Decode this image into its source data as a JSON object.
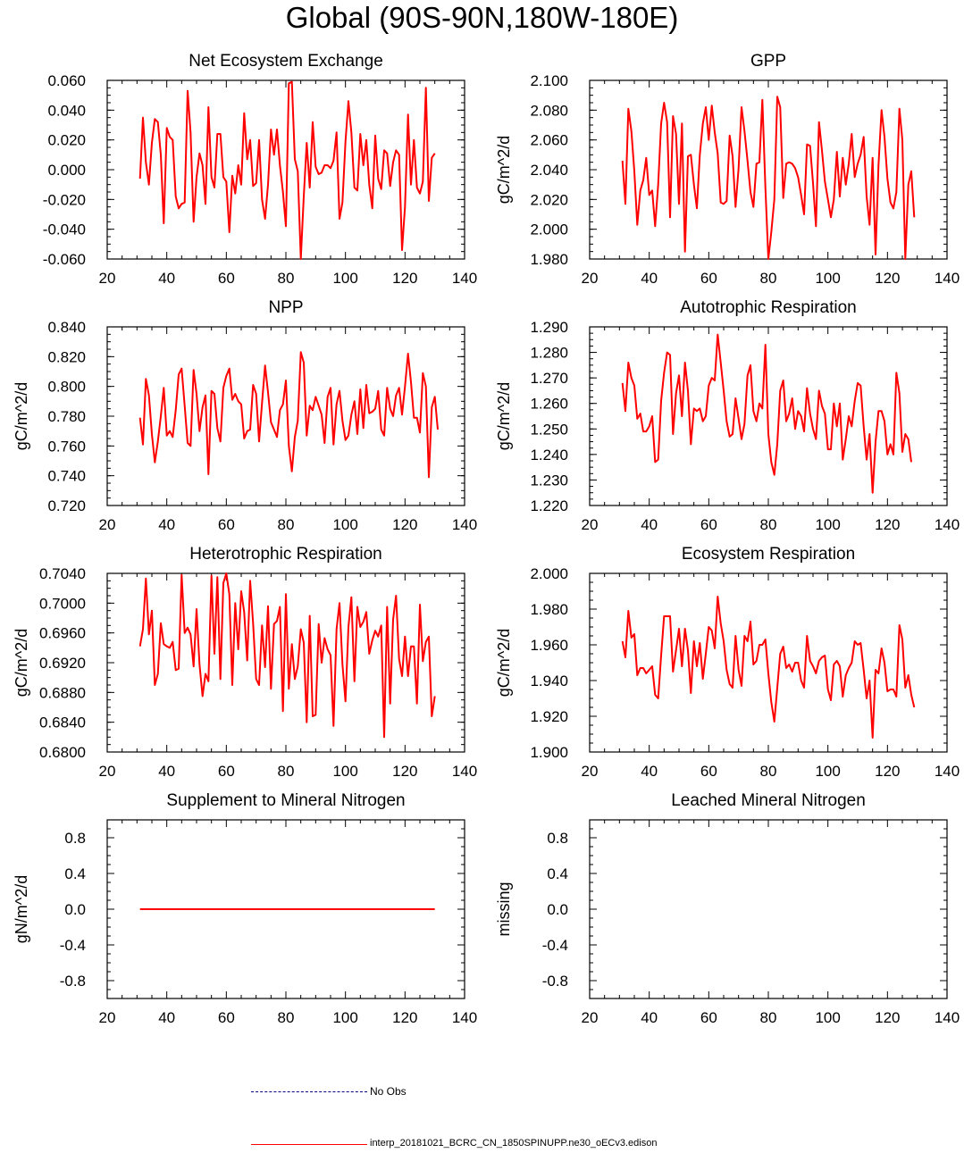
{
  "title": "Global (90S-90N,180W-180E)",
  "colors": {
    "model": "#ff0000",
    "obs": "#000080",
    "axis": "#000000"
  },
  "legend": {
    "obs_label": "No Obs",
    "model_label": "interp_20181021_BCRC_CN_1850SPINUPP.ne30_oECv3.edison"
  },
  "chart_data": [
    {
      "type": "line",
      "title": "Net Ecosystem Exchange",
      "ylabel": "",
      "xlim": [
        20,
        140
      ],
      "xticks": [
        "20",
        "40",
        "60",
        "80",
        "100",
        "120",
        "140"
      ],
      "ylim": [
        -0.06,
        0.06
      ],
      "yticks": [
        "-0.060",
        "-0.040",
        "-0.020",
        "0.000",
        "0.020",
        "0.040",
        "0.060"
      ],
      "series": [
        {
          "name": "model",
          "x_start": 31,
          "values": [
            -0.006,
            0.035,
            0.005,
            -0.01,
            0.018,
            0.034,
            0.032,
            0.01,
            -0.036,
            0.028,
            0.022,
            0.02,
            -0.018,
            -0.026,
            -0.023,
            -0.022,
            0.053,
            0.025,
            -0.035,
            -0.005,
            0.011,
            0.003,
            -0.023,
            0.042,
            -0.005,
            -0.012,
            0.024,
            0.024,
            -0.005,
            -0.008,
            -0.042,
            -0.004,
            -0.016,
            0.003,
            -0.01,
            0.038,
            0.007,
            0.02,
            -0.011,
            -0.009,
            0.02,
            -0.02,
            -0.033,
            -0.01,
            0.027,
            0.01,
            0.027,
            0.003,
            -0.015,
            -0.038,
            0.058,
            0.059,
            0.007,
            -0.001,
            -0.06,
            -0.018,
            0.018,
            -0.012,
            0.032,
            0.002,
            -0.003,
            -0.002,
            0.003,
            0.003,
            0.001,
            0.006,
            0.025,
            -0.033,
            -0.022,
            0.019,
            0.046,
            0.025,
            -0.012,
            -0.014,
            0.024,
            0.003,
            0.02,
            -0.01,
            -0.026,
            0.023,
            -0.006,
            -0.013,
            0.013,
            0.011,
            -0.011,
            0.005,
            0.013,
            0.01,
            -0.054,
            -0.025,
            0.037,
            -0.01,
            0.02,
            -0.012,
            -0.016,
            -0.008,
            0.055,
            -0.021,
            0.008,
            0.011
          ]
        }
      ]
    },
    {
      "type": "line",
      "title": "GPP",
      "ylabel": "gC/m^2/d",
      "xlim": [
        20,
        140
      ],
      "xticks": [
        "20",
        "40",
        "60",
        "80",
        "100",
        "120",
        "140"
      ],
      "ylim": [
        1.98,
        2.1
      ],
      "yticks": [
        "1.980",
        "2.000",
        "2.020",
        "2.040",
        "2.060",
        "2.080",
        "2.100"
      ],
      "series": [
        {
          "name": "model",
          "x_start": 31,
          "values": [
            2.046,
            2.017,
            2.081,
            2.066,
            2.039,
            2.003,
            2.026,
            2.033,
            2.048,
            2.023,
            2.026,
            2.002,
            2.03,
            2.071,
            2.085,
            2.072,
            2.008,
            2.076,
            2.064,
            2.017,
            2.071,
            1.985,
            2.049,
            2.05,
            2.03,
            2.014,
            2.05,
            2.071,
            2.082,
            2.06,
            2.083,
            2.065,
            2.051,
            2.018,
            2.017,
            2.019,
            2.063,
            2.049,
            2.015,
            2.041,
            2.082,
            2.066,
            2.046,
            2.025,
            2.015,
            2.044,
            2.045,
            2.087,
            2.028,
            1.98,
            1.998,
            2.02,
            2.089,
            2.082,
            2.021,
            2.044,
            2.045,
            2.044,
            2.041,
            2.035,
            2.023,
            2.01,
            2.057,
            2.056,
            2.031,
            2.002,
            2.072,
            2.053,
            2.032,
            2.02,
            2.008,
            2.02,
            2.052,
            2.022,
            2.048,
            2.03,
            2.044,
            2.064,
            2.035,
            2.044,
            2.05,
            2.062,
            2.022,
            2.003,
            2.048,
            1.983,
            2.043,
            2.08,
            2.062,
            2.034,
            2.018,
            2.014,
            2.025,
            2.081,
            2.06,
            1.98,
            2.03,
            2.039,
            2.008
          ]
        }
      ]
    },
    {
      "type": "line",
      "title": "NPP",
      "ylabel": "gC/m^2/d",
      "xlim": [
        20,
        140
      ],
      "xticks": [
        "20",
        "40",
        "60",
        "80",
        "100",
        "120",
        "140"
      ],
      "ylim": [
        0.72,
        0.84
      ],
      "yticks": [
        "0.720",
        "0.740",
        "0.760",
        "0.780",
        "0.800",
        "0.820",
        "0.840"
      ],
      "series": [
        {
          "name": "model",
          "x_start": 31,
          "values": [
            0.779,
            0.761,
            0.805,
            0.794,
            0.768,
            0.749,
            0.763,
            0.78,
            0.799,
            0.767,
            0.77,
            0.766,
            0.784,
            0.808,
            0.812,
            0.787,
            0.762,
            0.76,
            0.811,
            0.795,
            0.77,
            0.786,
            0.794,
            0.741,
            0.797,
            0.795,
            0.772,
            0.763,
            0.799,
            0.807,
            0.812,
            0.791,
            0.795,
            0.79,
            0.788,
            0.765,
            0.77,
            0.771,
            0.801,
            0.795,
            0.763,
            0.789,
            0.814,
            0.796,
            0.776,
            0.771,
            0.766,
            0.784,
            0.788,
            0.804,
            0.76,
            0.743,
            0.766,
            0.777,
            0.823,
            0.816,
            0.767,
            0.787,
            0.784,
            0.793,
            0.787,
            0.781,
            0.762,
            0.793,
            0.799,
            0.761,
            0.788,
            0.797,
            0.777,
            0.764,
            0.767,
            0.781,
            0.79,
            0.768,
            0.798,
            0.772,
            0.801,
            0.782,
            0.783,
            0.785,
            0.797,
            0.771,
            0.767,
            0.799,
            0.785,
            0.78,
            0.794,
            0.799,
            0.781,
            0.8,
            0.822,
            0.803,
            0.779,
            0.779,
            0.769,
            0.809,
            0.8,
            0.739,
            0.786,
            0.793,
            0.771
          ]
        }
      ]
    },
    {
      "type": "line",
      "title": "Autotrophic Respiration",
      "ylabel": "gC/m^2/d",
      "xlim": [
        20,
        140
      ],
      "xticks": [
        "20",
        "40",
        "60",
        "80",
        "100",
        "120",
        "140"
      ],
      "ylim": [
        1.22,
        1.29
      ],
      "yticks": [
        "1.220",
        "1.230",
        "1.240",
        "1.250",
        "1.260",
        "1.270",
        "1.280",
        "1.290"
      ],
      "series": [
        {
          "name": "model",
          "x_start": 31,
          "values": [
            1.268,
            1.257,
            1.276,
            1.27,
            1.267,
            1.254,
            1.256,
            1.249,
            1.249,
            1.251,
            1.255,
            1.237,
            1.238,
            1.261,
            1.272,
            1.28,
            1.279,
            1.248,
            1.264,
            1.271,
            1.255,
            1.276,
            1.265,
            1.244,
            1.258,
            1.257,
            1.258,
            1.253,
            1.255,
            1.267,
            1.27,
            1.269,
            1.287,
            1.276,
            1.265,
            1.253,
            1.247,
            1.248,
            1.262,
            1.254,
            1.246,
            1.252,
            1.271,
            1.275,
            1.257,
            1.253,
            1.26,
            1.258,
            1.283,
            1.248,
            1.237,
            1.232,
            1.244,
            1.265,
            1.269,
            1.253,
            1.256,
            1.262,
            1.25,
            1.257,
            1.255,
            1.249,
            1.266,
            1.256,
            1.25,
            1.246,
            1.265,
            1.259,
            1.256,
            1.242,
            1.242,
            1.26,
            1.251,
            1.26,
            1.238,
            1.246,
            1.255,
            1.251,
            1.261,
            1.268,
            1.267,
            1.251,
            1.238,
            1.248,
            1.225,
            1.245,
            1.257,
            1.257,
            1.253,
            1.24,
            1.244,
            1.24,
            1.272,
            1.264,
            1.241,
            1.248,
            1.246,
            1.237
          ]
        }
      ]
    },
    {
      "type": "line",
      "title": "Heterotrophic Respiration",
      "ylabel": "gC/m^2/d",
      "xlim": [
        20,
        140
      ],
      "xticks": [
        "20",
        "40",
        "60",
        "80",
        "100",
        "120",
        "140"
      ],
      "ylim": [
        0.68,
        0.704
      ],
      "yticks": [
        "0.6800",
        "0.6840",
        "0.6880",
        "0.6920",
        "0.6960",
        "0.7000",
        "0.7040"
      ],
      "series": [
        {
          "name": "model",
          "x_start": 31,
          "values": [
            0.6942,
            0.6965,
            0.7033,
            0.6958,
            0.699,
            0.689,
            0.6905,
            0.6973,
            0.6945,
            0.6942,
            0.694,
            0.6948,
            0.691,
            0.6912,
            0.7038,
            0.696,
            0.6967,
            0.6958,
            0.6915,
            0.6992,
            0.6918,
            0.6875,
            0.6905,
            0.6895,
            0.7037,
            0.6932,
            0.7035,
            0.6898,
            0.7027,
            0.704,
            0.7012,
            0.689,
            0.7,
            0.6938,
            0.7016,
            0.6988,
            0.6923,
            0.703,
            0.6973,
            0.6898,
            0.689,
            0.697,
            0.6914,
            0.6996,
            0.6885,
            0.6972,
            0.6976,
            0.6995,
            0.6855,
            0.7012,
            0.6885,
            0.6945,
            0.6898,
            0.6915,
            0.6965,
            0.6947,
            0.684,
            0.6983,
            0.6848,
            0.685,
            0.6972,
            0.692,
            0.6953,
            0.6938,
            0.693,
            0.6835,
            0.6965,
            0.7,
            0.6918,
            0.6868,
            0.6968,
            0.7008,
            0.6895,
            0.6995,
            0.6968,
            0.6975,
            0.6988,
            0.6932,
            0.695,
            0.6963,
            0.6955,
            0.697,
            0.682,
            0.6995,
            0.6865,
            0.6978,
            0.701,
            0.6925,
            0.6902,
            0.6955,
            0.6902,
            0.6942,
            0.6942,
            0.6865,
            0.6998,
            0.6922,
            0.6948,
            0.6955,
            0.6848,
            0.6875
          ]
        }
      ]
    },
    {
      "type": "line",
      "title": "Ecosystem Respiration",
      "ylabel": "gC/m^2/d",
      "xlim": [
        20,
        140
      ],
      "xticks": [
        "20",
        "40",
        "60",
        "80",
        "100",
        "120",
        "140"
      ],
      "ylim": [
        1.9,
        2.0
      ],
      "yticks": [
        "1.900",
        "1.920",
        "1.940",
        "1.960",
        "1.980",
        "2.000"
      ],
      "series": [
        {
          "name": "model",
          "x_start": 31,
          "values": [
            1.962,
            1.953,
            1.979,
            1.964,
            1.966,
            1.943,
            1.947,
            1.947,
            1.944,
            1.946,
            1.948,
            1.932,
            1.93,
            1.954,
            1.976,
            1.976,
            1.976,
            1.945,
            1.957,
            1.969,
            1.948,
            1.969,
            1.957,
            1.933,
            1.962,
            1.948,
            1.961,
            1.941,
            1.955,
            1.97,
            1.968,
            1.958,
            1.987,
            1.972,
            1.962,
            1.946,
            1.938,
            1.936,
            1.965,
            1.946,
            1.937,
            1.965,
            1.962,
            1.973,
            1.949,
            1.951,
            1.96,
            1.96,
            1.963,
            1.944,
            1.928,
            1.917,
            1.936,
            1.955,
            1.959,
            1.947,
            1.949,
            1.945,
            1.95,
            1.95,
            1.94,
            1.936,
            1.965,
            1.951,
            1.948,
            1.944,
            1.951,
            1.953,
            1.954,
            1.935,
            1.929,
            1.949,
            1.951,
            1.948,
            1.931,
            1.943,
            1.947,
            1.95,
            1.962,
            1.96,
            1.961,
            1.946,
            1.93,
            1.94,
            1.908,
            1.946,
            1.944,
            1.958,
            1.95,
            1.934,
            1.935,
            1.935,
            1.931,
            1.971,
            1.963,
            1.936,
            1.943,
            1.932,
            1.925
          ]
        }
      ]
    },
    {
      "type": "line",
      "title": "Supplement to Mineral Nitrogen",
      "ylabel": "gN/m^2/d",
      "xlim": [
        20,
        140
      ],
      "xticks": [
        "20",
        "40",
        "60",
        "80",
        "100",
        "120",
        "140"
      ],
      "ylim": [
        -1.0,
        1.0
      ],
      "yticks": [
        "-0.8",
        "-0.4",
        "0.0",
        "0.4",
        "0.8"
      ],
      "yticks_values": [
        -0.8,
        -0.4,
        0.0,
        0.4,
        0.8
      ],
      "series": [
        {
          "name": "model",
          "x_start": 31,
          "x_end": 130,
          "constant": 0.0
        }
      ]
    },
    {
      "type": "line",
      "title": "Leached Mineral Nitrogen",
      "ylabel": "missing",
      "xlim": [
        20,
        140
      ],
      "xticks": [
        "20",
        "40",
        "60",
        "80",
        "100",
        "120",
        "140"
      ],
      "ylim": [
        -1.0,
        1.0
      ],
      "yticks": [
        "-0.8",
        "-0.4",
        "0.0",
        "0.4",
        "0.8"
      ],
      "yticks_values": [
        -0.8,
        -0.4,
        0.0,
        0.4,
        0.8
      ],
      "series": []
    }
  ]
}
